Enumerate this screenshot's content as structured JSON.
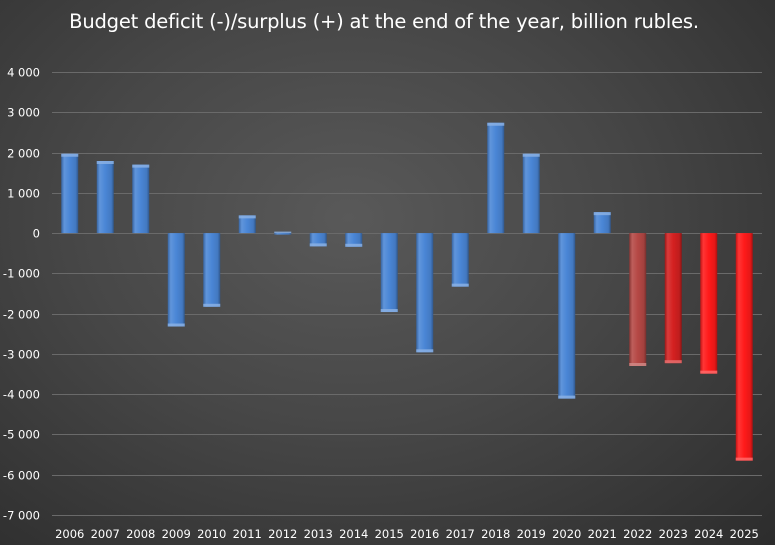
{
  "chart_data": {
    "type": "bar",
    "title": "Budget deficit (-)/surplus (+) at the end of the year, billion rubles.",
    "xlabel": "",
    "ylabel": "",
    "categories": [
      "2006",
      "2007",
      "2008",
      "2009",
      "2010",
      "2011",
      "2012",
      "2013",
      "2014",
      "2015",
      "2016",
      "2017",
      "2018",
      "2019",
      "2020",
      "2021",
      "2022",
      "2023",
      "2024",
      "2025"
    ],
    "values": [
      1970,
      1790,
      1700,
      -2320,
      -1830,
      440,
      -30,
      -330,
      -340,
      -1960,
      -2960,
      -1330,
      2740,
      1970,
      -4110,
      520,
      -3300,
      -3230,
      -3490,
      -5650
    ],
    "ylim": [
      -7000,
      4000
    ],
    "yticks": [
      4000,
      3000,
      2000,
      1000,
      0,
      -1000,
      -2000,
      -3000,
      -4000,
      -5000,
      -6000,
      -7000
    ],
    "ytick_labels": [
      "4 000",
      "3 000",
      "2 000",
      "1 000",
      "0",
      "-1 000",
      "-2 000",
      "-3 000",
      "-4 000",
      "-5 000",
      "-6 000",
      "-7 000"
    ],
    "grid": true,
    "legend": "none",
    "colors": {
      "blue": "#4a86d6",
      "red_2022": "#b54845",
      "red_2023": "#d42020",
      "red_2024": "#ff1a1a",
      "red_2025": "#ff1a1a"
    },
    "bar_colors": [
      "blue",
      "blue",
      "blue",
      "blue",
      "blue",
      "blue",
      "blue",
      "blue",
      "blue",
      "blue",
      "blue",
      "blue",
      "blue",
      "blue",
      "blue",
      "blue",
      "red_2022",
      "red_2023",
      "red_2024",
      "red_2025"
    ]
  }
}
